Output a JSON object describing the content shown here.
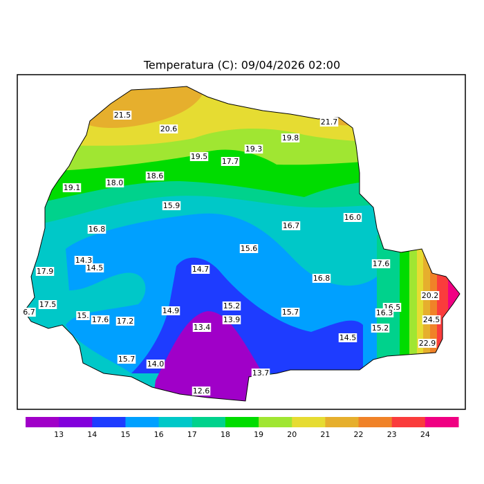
{
  "title": "Temperatura (C): 09/04/2026 02:00",
  "labels": [
    "21.5",
    "20.6",
    "21.7",
    "19.8",
    "19.3",
    "19.5",
    "17.7",
    "18.6",
    "18.0",
    "19.1",
    "15.9",
    "16.7",
    "16.0",
    "16.8",
    "15.6",
    "14.3",
    "14.5",
    "17.9",
    "17.6",
    "14.7",
    "16.8",
    "20.2",
    "17.5",
    "15.2",
    "16.5",
    "16.3",
    "14.9",
    "15.7",
    "24.5",
    "6.7",
    "15.",
    "17.6",
    "17.2",
    "13.9",
    "13.4",
    "15.2",
    "14.5",
    "22.9",
    "15.7",
    "14.0",
    "13.7",
    "12.6"
  ],
  "colorbar": {
    "colors": [
      "#a000c8",
      "#8200dc",
      "#1e3cff",
      "#00a0ff",
      "#00c8c8",
      "#00d28c",
      "#00dc00",
      "#a0e632",
      "#e6dc32",
      "#e6af2d",
      "#f08228",
      "#fa3c3c",
      "#f00082"
    ],
    "ticks": [
      13,
      14,
      15,
      16,
      17,
      18,
      19,
      20,
      21,
      22,
      23,
      24
    ]
  }
}
